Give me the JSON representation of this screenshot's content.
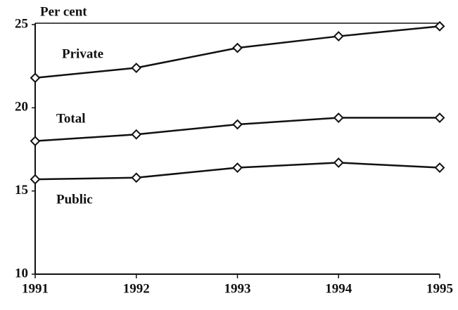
{
  "chart_data": {
    "type": "line",
    "y_label": "Per cent",
    "categories": [
      "1991",
      "1992",
      "1993",
      "1994",
      "1995"
    ],
    "series": [
      {
        "name": "Private",
        "color": "#111111",
        "values": [
          21.8,
          22.4,
          23.6,
          24.3,
          24.9
        ]
      },
      {
        "name": "Total",
        "color": "#111111",
        "values": [
          18.0,
          18.4,
          19.0,
          19.4,
          19.4
        ]
      },
      {
        "name": "Public",
        "color": "#111111",
        "values": [
          15.7,
          15.8,
          16.4,
          16.7,
          16.4
        ]
      }
    ],
    "ylim": [
      10,
      25
    ],
    "yticks": [
      10,
      15,
      20,
      25
    ],
    "grid": false
  }
}
